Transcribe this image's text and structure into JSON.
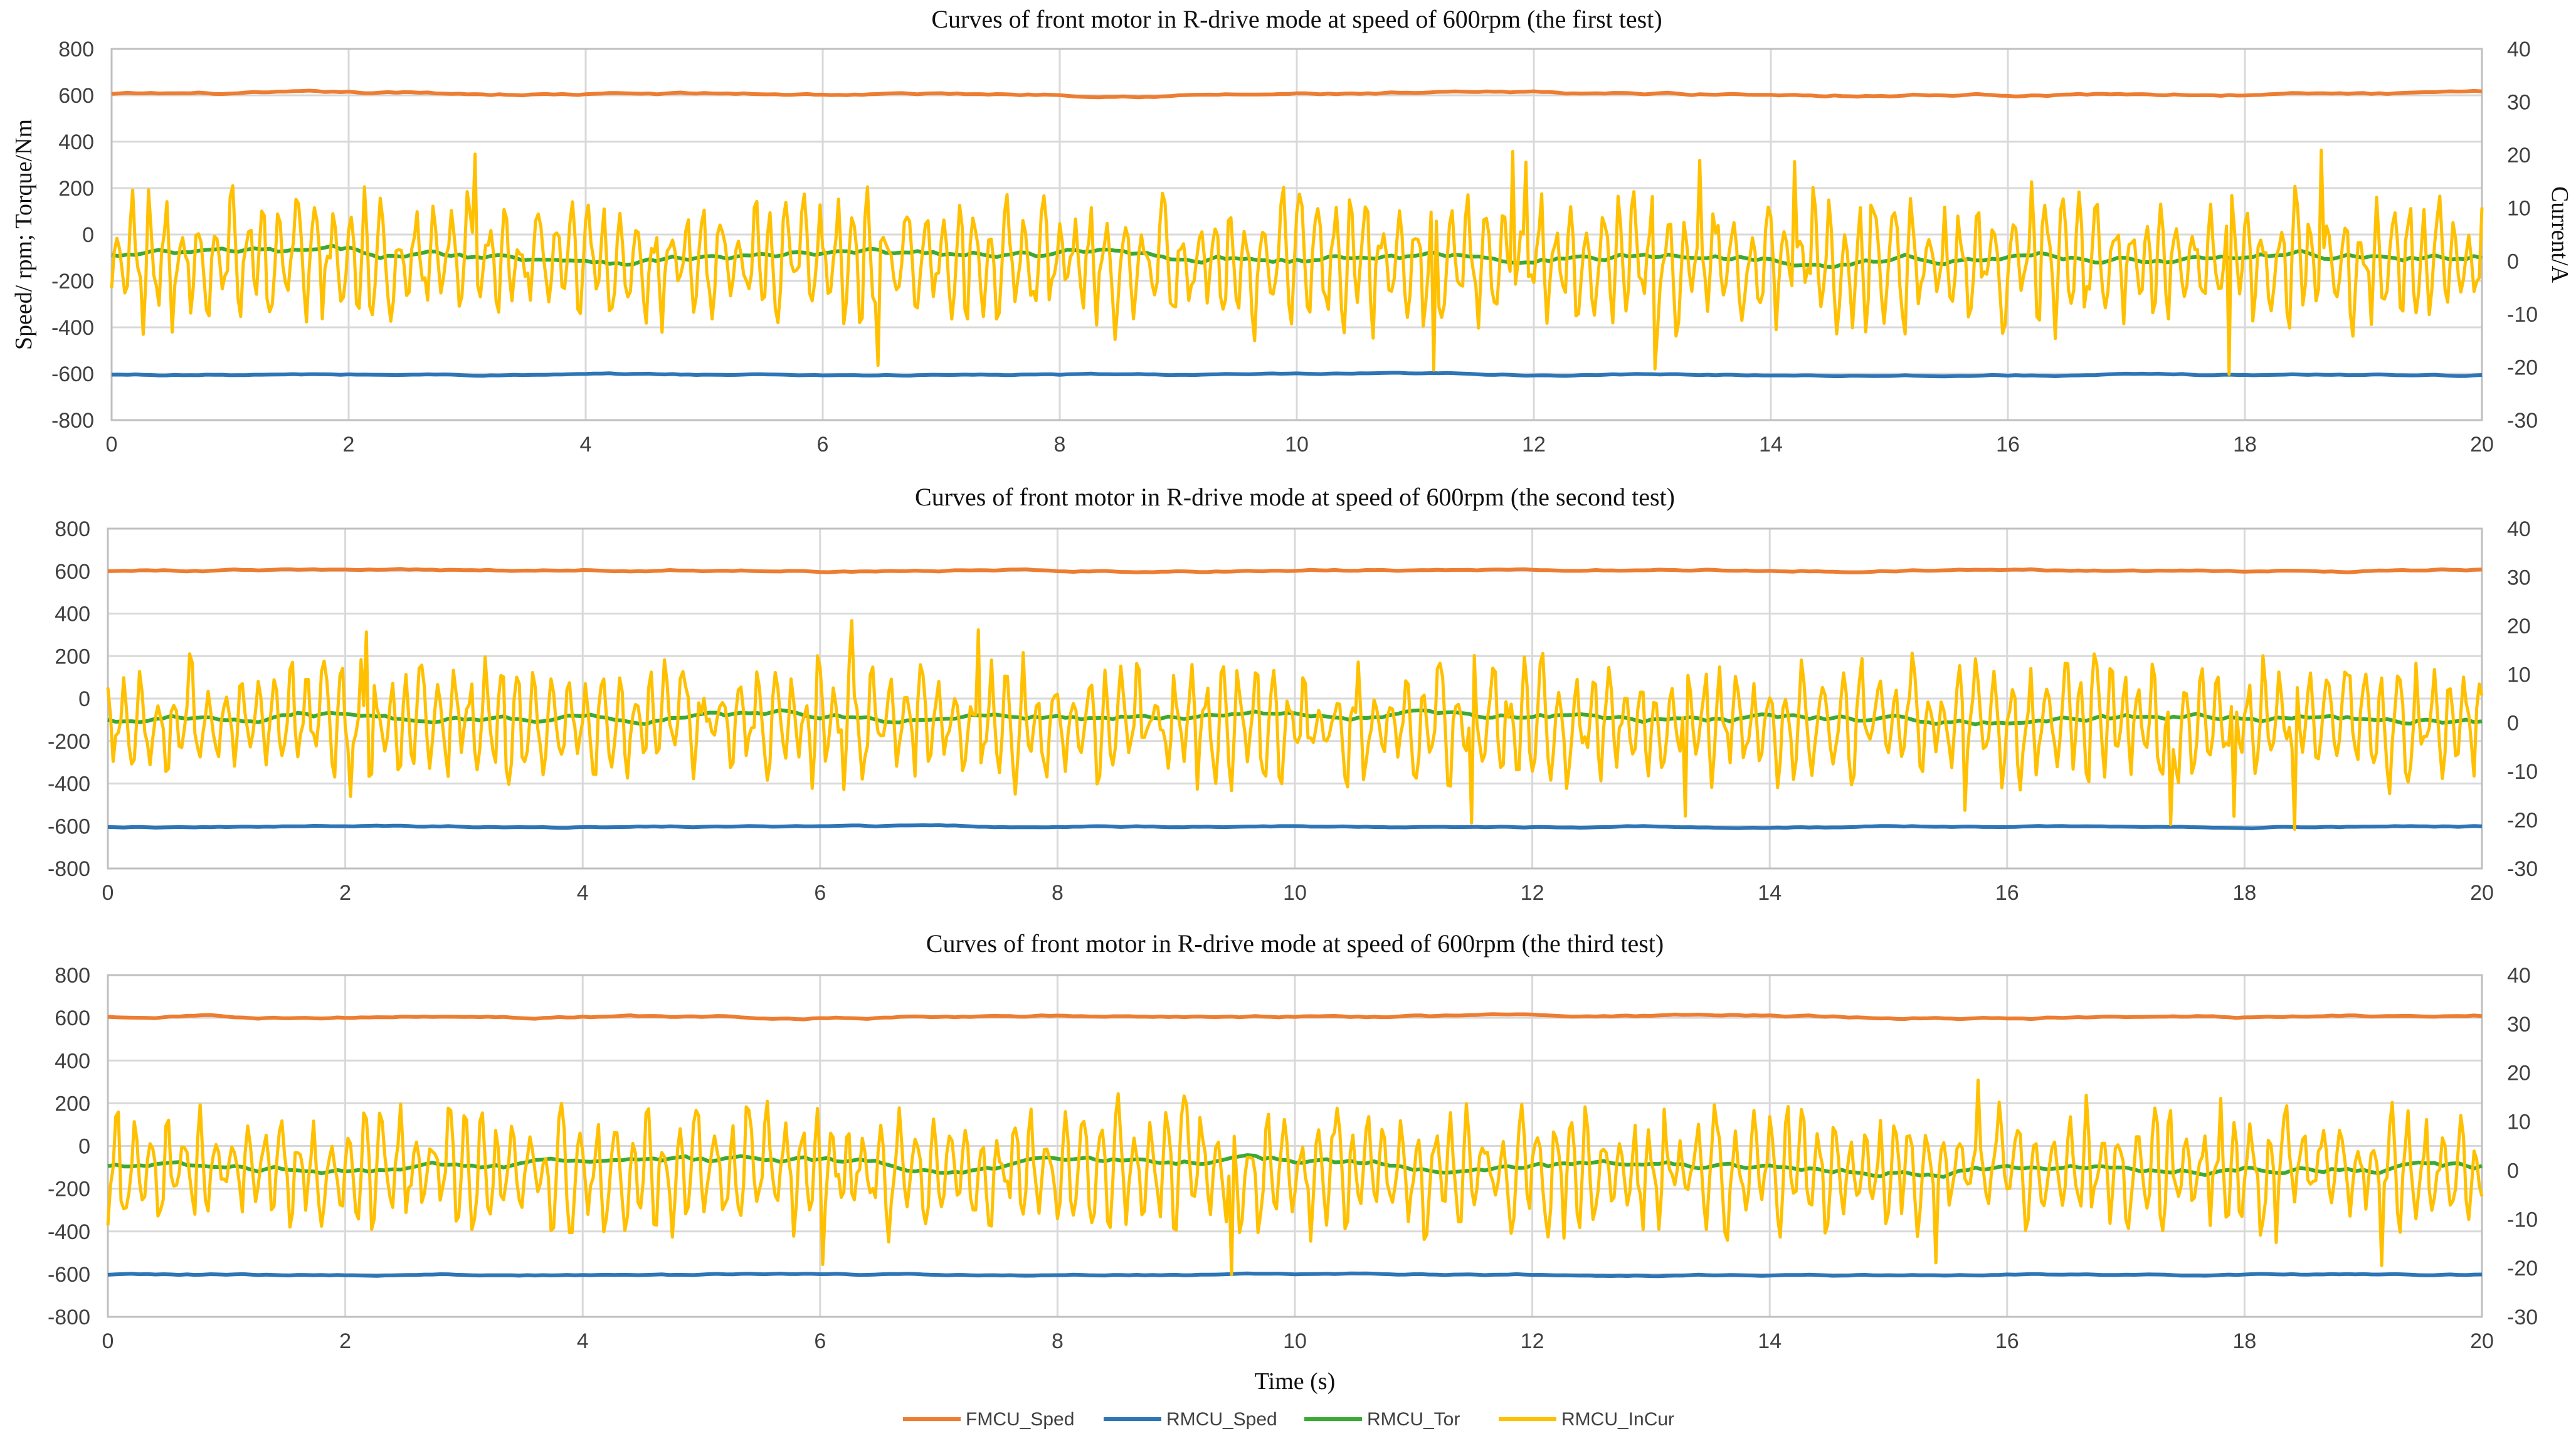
{
  "chart_data": [
    {
      "type": "line",
      "title": "Curves of front motor in R-drive mode at speed of 600rpm  (the first test)",
      "xlabel": "",
      "ylabel": "Speed/ rpm; Torque/Nm",
      "y2label": "Current/A",
      "xlim": [
        0,
        20
      ],
      "ylim": [
        -800,
        800
      ],
      "y2lim": [
        -30,
        40
      ],
      "x_ticks": [
        "0",
        "2",
        "4",
        "6",
        "8",
        "10",
        "12",
        "14",
        "16",
        "18",
        "20"
      ],
      "y_ticks": [
        "800",
        "600",
        "400",
        "200",
        "0",
        "-200",
        "-400",
        "-600",
        "-800"
      ],
      "y2_ticks": [
        "40",
        "30",
        "20",
        "10",
        "0",
        "-10",
        "-20",
        "-30"
      ],
      "grid": true,
      "series": [
        {
          "name": "FMCU_Sped",
          "axis": "left",
          "color": "#ED7D31",
          "mean": 605,
          "noise": 8,
          "type": "smooth"
        },
        {
          "name": "RMCU_Sped",
          "axis": "left",
          "color": "#2E75B6",
          "mean": -605,
          "noise": 5,
          "type": "smooth"
        },
        {
          "name": "RMCU_Tor",
          "axis": "left",
          "color": "#3AAA35",
          "mean": -95,
          "noise": 28,
          "type": "smooth"
        },
        {
          "name": "RMCU_InCur",
          "axis": "right",
          "color": "#FFC000",
          "mean": 0,
          "noise": 9,
          "type": "oscillating"
        }
      ]
    },
    {
      "type": "line",
      "title": "Curves of front motor in R-drive mode at speed of 600rpm  (the second test)",
      "xlabel": "",
      "ylabel": "",
      "y2label": "",
      "xlim": [
        0,
        20
      ],
      "ylim": [
        -800,
        800
      ],
      "y2lim": [
        -30,
        40
      ],
      "x_ticks": [
        "0",
        "2",
        "4",
        "6",
        "8",
        "10",
        "12",
        "14",
        "16",
        "18",
        "20"
      ],
      "y_ticks": [
        "800",
        "600",
        "400",
        "200",
        "0",
        "-200",
        "-400",
        "-600",
        "-800"
      ],
      "y2_ticks": [
        "40",
        "30",
        "20",
        "10",
        "0",
        "-10",
        "-20",
        "-30"
      ],
      "grid": true,
      "series": [
        {
          "name": "FMCU_Sped",
          "axis": "left",
          "color": "#ED7D31",
          "mean": 603,
          "noise": 7,
          "type": "smooth"
        },
        {
          "name": "RMCU_Sped",
          "axis": "left",
          "color": "#2E75B6",
          "mean": -603,
          "noise": 5,
          "type": "smooth"
        },
        {
          "name": "RMCU_Tor",
          "axis": "left",
          "color": "#3AAA35",
          "mean": -90,
          "noise": 28,
          "type": "smooth"
        },
        {
          "name": "RMCU_InCur",
          "axis": "right",
          "color": "#FFC000",
          "mean": 0,
          "noise": 9,
          "type": "oscillating"
        }
      ]
    },
    {
      "type": "line",
      "title": "Curves of front motor in R-drive mode at speed of 600rpm  (the third test)",
      "xlabel": "Time (s)",
      "ylabel": "",
      "y2label": "",
      "xlim": [
        0,
        20
      ],
      "ylim": [
        -800,
        800
      ],
      "y2lim": [
        -30,
        40
      ],
      "x_ticks": [
        "0",
        "2",
        "4",
        "6",
        "8",
        "10",
        "12",
        "14",
        "16",
        "18",
        "20"
      ],
      "y_ticks": [
        "800",
        "600",
        "400",
        "200",
        "0",
        "-200",
        "-400",
        "-600",
        "-800"
      ],
      "y2_ticks": [
        "40",
        "30",
        "20",
        "10",
        "0",
        "-10",
        "-20",
        "-30"
      ],
      "grid": true,
      "series": [
        {
          "name": "FMCU_Sped",
          "axis": "left",
          "color": "#ED7D31",
          "mean": 605,
          "noise": 8,
          "type": "smooth"
        },
        {
          "name": "RMCU_Sped",
          "axis": "left",
          "color": "#2E75B6",
          "mean": -603,
          "noise": 5,
          "type": "smooth"
        },
        {
          "name": "RMCU_Tor",
          "axis": "left",
          "color": "#3AAA35",
          "mean": -95,
          "noise": 28,
          "type": "smooth"
        },
        {
          "name": "RMCU_InCur",
          "axis": "right",
          "color": "#FFC000",
          "mean": 0,
          "noise": 9,
          "type": "oscillating"
        }
      ]
    }
  ],
  "legend": {
    "entries": [
      {
        "label": "FMCU_Sped",
        "color": "#ED7D31"
      },
      {
        "label": "RMCU_Sped",
        "color": "#2E75B6"
      },
      {
        "label": "RMCU_Tor",
        "color": "#3AAA35"
      },
      {
        "label": "RMCU_InCur",
        "color": "#FFC000"
      }
    ],
    "placement": "bottom-center"
  },
  "colors": {
    "grid": "#D9D9D9",
    "axis": "#BFBFBF",
    "tick_text": "#404040"
  }
}
